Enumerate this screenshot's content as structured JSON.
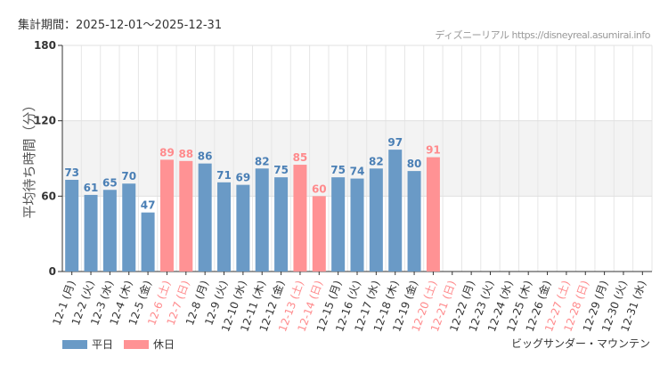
{
  "header": {
    "period": "集計期間：2025-12-01～2025-12-31",
    "credit": "ディズニーリアル https://disneyreal.asumirai.info"
  },
  "attraction": "ビッグサンダー・マウンテン",
  "legend": {
    "weekday": "平日",
    "holiday": "休日"
  },
  "colors": {
    "weekday": "#6a9ac6",
    "holiday": "#ff9294",
    "holiday_text": "#ff8a8c",
    "weekday_text": "#4a7fb5"
  },
  "chart_data": {
    "type": "bar",
    "ylabel": "平均待ち時間（分）",
    "ylim": [
      0,
      180
    ],
    "yticks": [
      0,
      60,
      120,
      180
    ],
    "categories": [
      "12-1 (月)",
      "12-2 (火)",
      "12-3 (水)",
      "12-4 (木)",
      "12-5 (金)",
      "12-6 (土)",
      "12-7 (日)",
      "12-8 (月)",
      "12-9 (火)",
      "12-10 (水)",
      "12-11 (木)",
      "12-12 (金)",
      "12-13 (土)",
      "12-14 (日)",
      "12-15 (月)",
      "12-16 (火)",
      "12-17 (水)",
      "12-18 (木)",
      "12-19 (金)",
      "12-20 (土)",
      "12-21 (日)",
      "12-22 (月)",
      "12-23 (火)",
      "12-24 (水)",
      "12-25 (木)",
      "12-26 (金)",
      "12-27 (土)",
      "12-28 (日)",
      "12-29 (月)",
      "12-30 (火)",
      "12-31 (水)"
    ],
    "holiday": [
      false,
      false,
      false,
      false,
      false,
      true,
      true,
      false,
      false,
      false,
      false,
      false,
      true,
      true,
      false,
      false,
      false,
      false,
      false,
      true,
      true,
      false,
      false,
      false,
      false,
      false,
      true,
      true,
      false,
      false,
      false
    ],
    "values": [
      73,
      61,
      65,
      70,
      47,
      89,
      88,
      86,
      71,
      69,
      82,
      75,
      85,
      60,
      75,
      74,
      82,
      97,
      80,
      91,
      null,
      null,
      null,
      null,
      null,
      null,
      null,
      null,
      null,
      null,
      null
    ]
  }
}
